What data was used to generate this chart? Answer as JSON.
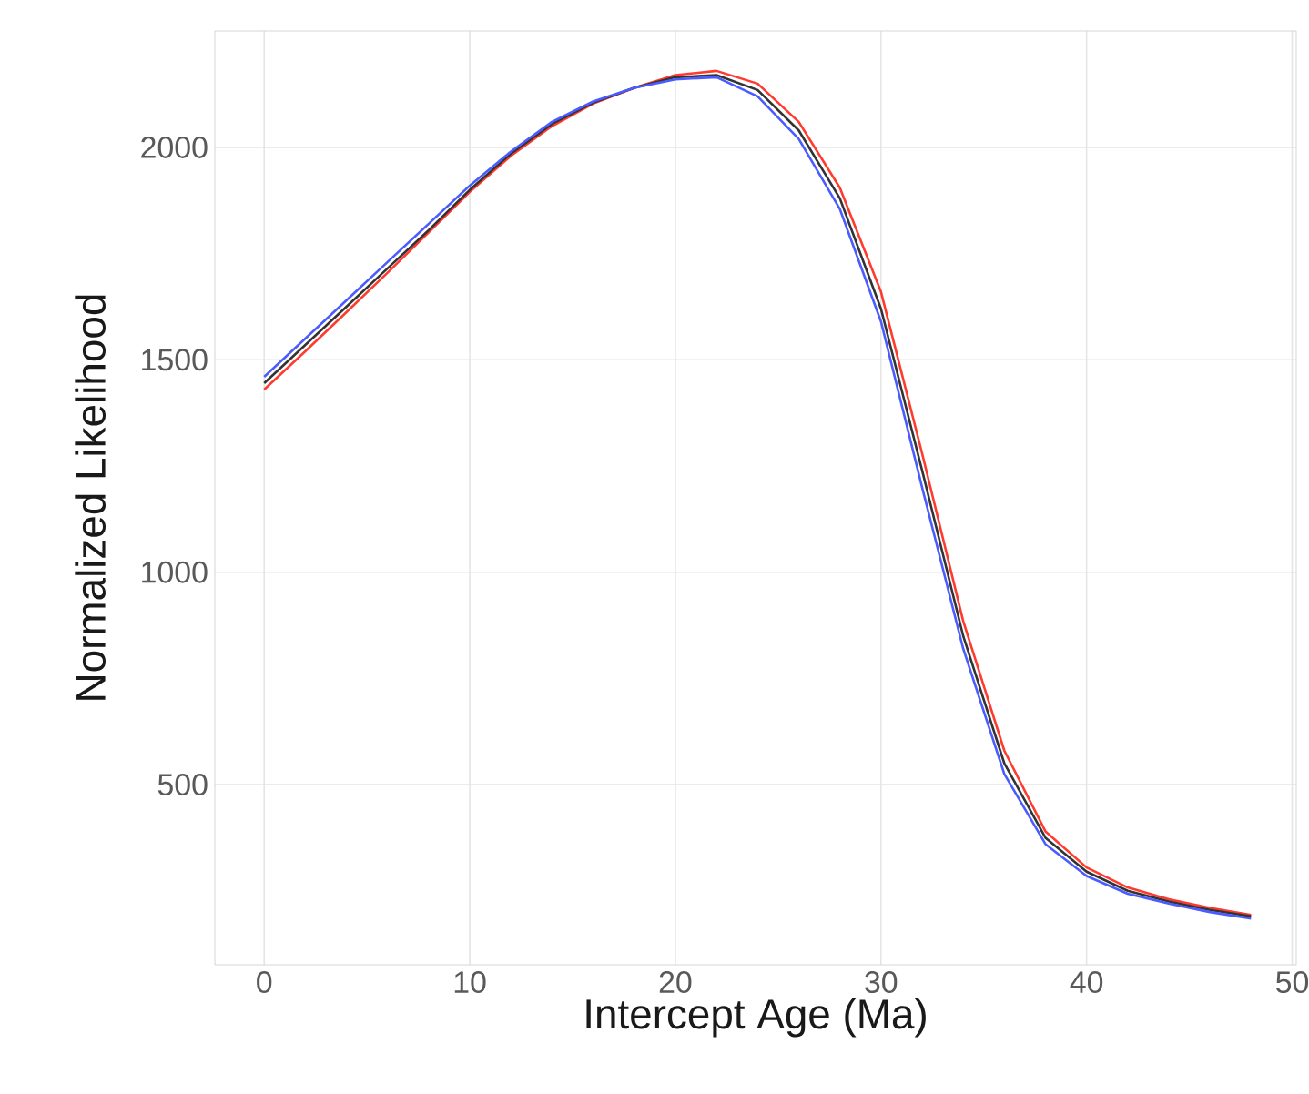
{
  "chart_data": {
    "type": "line",
    "xlabel": "Intercept Age (Ma)",
    "ylabel": "Normalized Likelihood",
    "x": [
      0,
      2,
      4,
      6,
      8,
      10,
      12,
      14,
      16,
      18,
      20,
      22,
      24,
      26,
      28,
      30,
      32,
      34,
      36,
      38,
      40,
      42,
      44,
      46,
      48
    ],
    "series": [
      {
        "color": "#ff3b30",
        "values": [
          1430,
          1520,
          1612,
          1705,
          1800,
          1895,
          1980,
          2050,
          2103,
          2140,
          2170,
          2180,
          2150,
          2060,
          1905,
          1660,
          1280,
          885,
          580,
          390,
          305,
          258,
          230,
          210,
          193
        ]
      },
      {
        "color": "#333333",
        "values": [
          1445,
          1535,
          1625,
          1715,
          1805,
          1900,
          1985,
          2055,
          2105,
          2140,
          2165,
          2170,
          2135,
          2040,
          1880,
          1620,
          1240,
          850,
          550,
          375,
          295,
          250,
          225,
          205,
          190
        ]
      },
      {
        "color": "#4a5cff",
        "values": [
          1460,
          1550,
          1640,
          1730,
          1820,
          1910,
          1990,
          2060,
          2108,
          2140,
          2160,
          2165,
          2120,
          2020,
          1855,
          1590,
          1200,
          820,
          525,
          360,
          285,
          243,
          220,
          200,
          185
        ]
      }
    ],
    "xlim": [
      -2.4,
      50.2
    ],
    "ylim": [
      76,
      2274
    ],
    "xticks": [
      0,
      10,
      20,
      30,
      40,
      50
    ],
    "yticks": [
      500,
      1000,
      1500,
      2000
    ],
    "grid": true,
    "marker": "none",
    "line_style": "solid"
  }
}
